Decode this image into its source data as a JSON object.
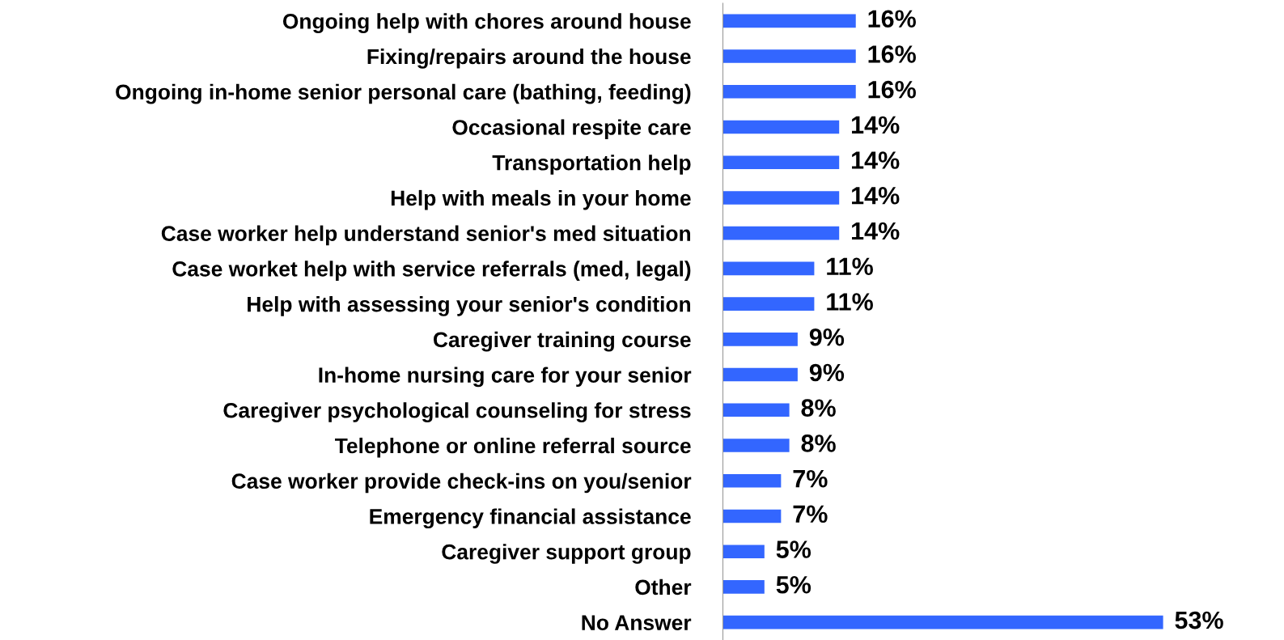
{
  "chart_data": {
    "type": "bar",
    "orientation": "horizontal",
    "categories": [
      "Ongoing help with chores around house",
      "Fixing/repairs around the house",
      "Ongoing in-home senior personal care (bathing, feeding)",
      "Occasional respite care",
      "Transportation help",
      "Help with meals in your home",
      "Case worker help understand senior's med situation",
      "Case worket help with service referrals (med, legal)",
      "Help with assessing your senior's condition",
      "Caregiver training course",
      "In-home nursing care for your senior",
      "Caregiver psychological counseling for stress",
      "Telephone or online referral source",
      "Case worker provide check-ins on you/senior",
      "Emergency financial assistance",
      "Caregiver support group",
      "Other",
      "No Answer"
    ],
    "values": [
      16,
      16,
      16,
      14,
      14,
      14,
      14,
      11,
      11,
      9,
      9,
      8,
      8,
      7,
      7,
      5,
      5,
      53
    ],
    "value_labels": [
      "16%",
      "16%",
      "16%",
      "14%",
      "14%",
      "14%",
      "14%",
      "11%",
      "11%",
      "9%",
      "9%",
      "8%",
      "8%",
      "7%",
      "7%",
      "5%",
      "5%",
      "53%"
    ],
    "color": "#3366ff",
    "grid": false,
    "legend": false
  }
}
